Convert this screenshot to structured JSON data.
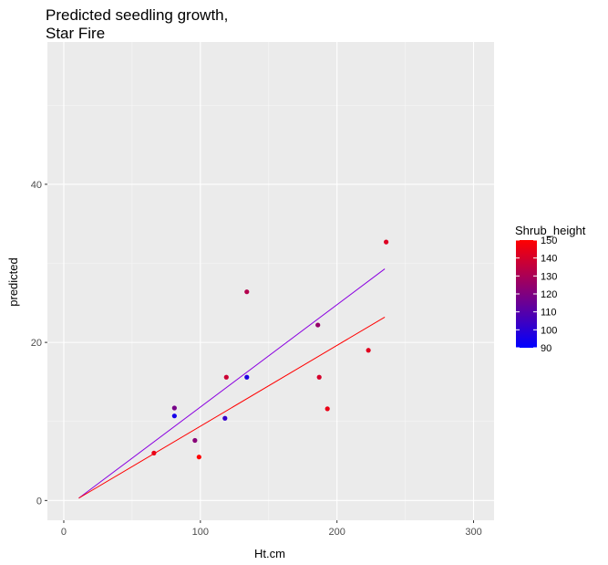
{
  "chart_data": {
    "type": "scatter",
    "title_lines": [
      "Predicted seedling growth,",
      "Star Fire"
    ],
    "xlabel": "Ht.cm",
    "ylabel": "predicted",
    "xlim": [
      -12,
      315
    ],
    "ylim": [
      -2.5,
      58
    ],
    "x_ticks": [
      0,
      100,
      200,
      300
    ],
    "y_ticks": [
      0,
      20,
      40
    ],
    "grid": true,
    "legend": {
      "title": "Shrub_height",
      "placement": "right",
      "min": 90,
      "max": 150,
      "ticks": [
        90,
        100,
        110,
        120,
        130,
        140,
        150
      ],
      "low_color": "#0000ff",
      "high_color": "#ff0000"
    },
    "points": [
      {
        "x": 66,
        "y": 6.0,
        "shrub_height": 145
      },
      {
        "x": 81,
        "y": 11.7,
        "shrub_height": 118
      },
      {
        "x": 81,
        "y": 10.7,
        "shrub_height": 95
      },
      {
        "x": 96,
        "y": 7.6,
        "shrub_height": 122
      },
      {
        "x": 99,
        "y": 5.5,
        "shrub_height": 150
      },
      {
        "x": 119,
        "y": 15.6,
        "shrub_height": 138
      },
      {
        "x": 118,
        "y": 10.4,
        "shrub_height": 102
      },
      {
        "x": 134,
        "y": 15.6,
        "shrub_height": 97
      },
      {
        "x": 134,
        "y": 26.4,
        "shrub_height": 132
      },
      {
        "x": 186,
        "y": 22.2,
        "shrub_height": 125
      },
      {
        "x": 187,
        "y": 15.6,
        "shrub_height": 140
      },
      {
        "x": 193,
        "y": 11.6,
        "shrub_height": 145
      },
      {
        "x": 223,
        "y": 19.0,
        "shrub_height": 143
      },
      {
        "x": 236,
        "y": 32.7,
        "shrub_height": 142
      }
    ],
    "fit_lines": [
      {
        "x": [
          11,
          235
        ],
        "y": [
          0.3,
          29.3
        ],
        "color": "#8a00e0"
      },
      {
        "x": [
          11,
          235
        ],
        "y": [
          0.3,
          23.2
        ],
        "color": "#ff0000"
      }
    ]
  }
}
